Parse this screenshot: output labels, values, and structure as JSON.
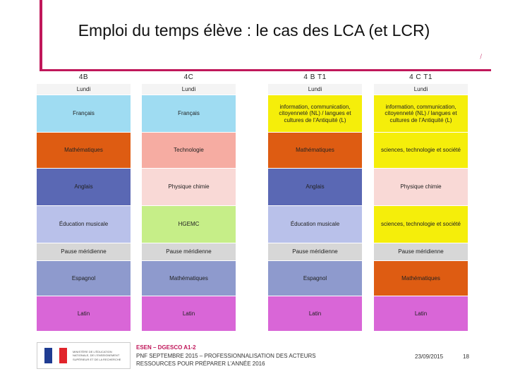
{
  "title": "Emploi du temps élève : le cas des LCA (et LCR)",
  "colors": {
    "accent": "#c0175a",
    "lundi": "#f4f4f4",
    "francais": "#9fdcf2",
    "maths": "#de5c12",
    "anglais": "#5a68b4",
    "musique": "#b9c1ea",
    "pause": "#d7d7d7",
    "espagnol": "#8e9acd",
    "latin": "#d966d7",
    "techno": "#f6aca2",
    "physique": "#f9d9d6",
    "hgemc": "#c6ee88",
    "epi": "#f5ee0a"
  },
  "columns": [
    {
      "label": "4B",
      "cells": [
        "Lundi",
        "Français",
        "Mathématiques",
        "Anglais",
        "Éducation musicale",
        "Pause méridienne",
        "Espagnol",
        "Latin"
      ]
    },
    {
      "label": "4C",
      "cells": [
        "Lundi",
        "Français",
        "Technologie",
        "Physique chimie",
        "HGEMC",
        "Pause méridienne",
        "Mathématiques",
        "Latin"
      ]
    },
    {
      "label": "4 B T1",
      "cells": [
        "Lundi",
        "information, communication, citoyenneté (NL) / langues et cultures de l’Antiquité (L)",
        "Mathématiques",
        "Anglais",
        "Éducation musicale",
        "Pause méridienne",
        "Espagnol",
        "Latin"
      ]
    },
    {
      "label": "4 C T1",
      "cells": [
        "Lundi",
        "information, communication, citoyenneté (NL) / langues et cultures de l’Antiquité (L)",
        "sciences, technologie et société",
        "Physique chimie",
        "sciences, technologie et société",
        "Pause méridienne",
        "Mathématiques",
        "Latin"
      ]
    }
  ],
  "footer": {
    "logo_text": "MINISTÈRE DE L'ÉDUCATION NATIONALE, DE L'ENSEIGNEMENT SUPÉRIEUR ET DE LA RECHERCHE",
    "org": "ESEN – DGESCO A1-2",
    "line2": "PNF SEPTEMBRE 2015 – PROFESSIONNALISATION DES ACTEURS",
    "line3": "RESSOURCES POUR PRÉPARER L’ANNÉE 2016",
    "date": "23/09/2015",
    "page": "18"
  }
}
